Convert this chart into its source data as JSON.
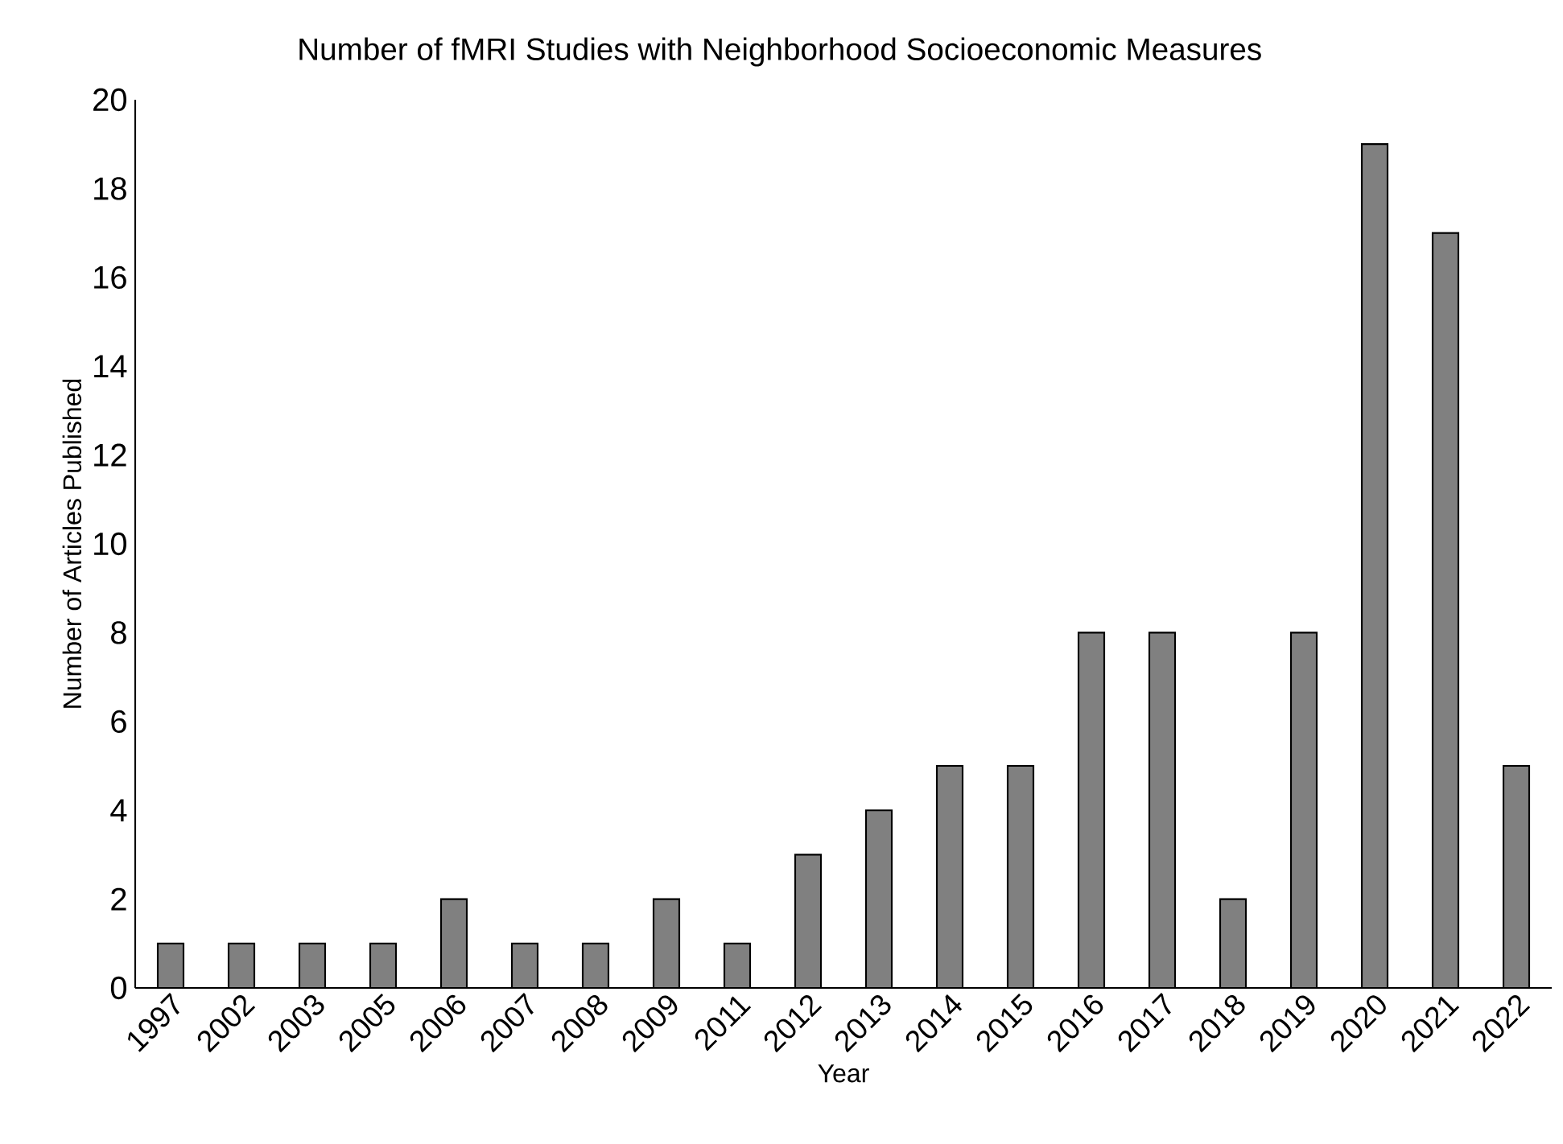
{
  "chart_data": {
    "type": "bar",
    "title": "Number of fMRI Studies with Neighborhood Socioeconomic Measures",
    "xlabel": "Year",
    "ylabel": "Number of Articles Published",
    "categories": [
      "1997",
      "2002",
      "2003",
      "2005",
      "2006",
      "2007",
      "2008",
      "2009",
      "2011",
      "2012",
      "2013",
      "2014",
      "2015",
      "2016",
      "2017",
      "2018",
      "2019",
      "2020",
      "2021",
      "2022"
    ],
    "values": [
      1,
      1,
      1,
      1,
      2,
      1,
      1,
      2,
      1,
      3,
      4,
      5,
      5,
      8,
      8,
      2,
      8,
      19,
      17,
      5
    ],
    "color": "#808080",
    "ylim": [
      0,
      20
    ],
    "yticks": [
      0,
      2,
      4,
      6,
      8,
      10,
      12,
      14,
      16,
      18,
      20
    ],
    "grid": false
  }
}
